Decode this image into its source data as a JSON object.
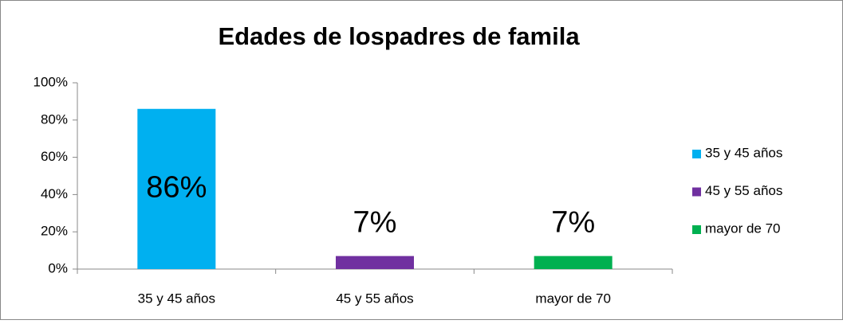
{
  "chart_data": {
    "type": "bar",
    "title": "Edades de lospadres de famila",
    "categories": [
      "35 y 45 años",
      "45 y 55 años",
      "mayor de 70"
    ],
    "values": [
      86,
      7,
      7
    ],
    "value_labels": [
      "86%",
      "7%",
      "7%"
    ],
    "colors": [
      "#00b0f0",
      "#7030a0",
      "#00b050"
    ],
    "ylim": [
      0,
      100
    ],
    "yticks": [
      {
        "value": 0,
        "label": "0%"
      },
      {
        "value": 20,
        "label": "20%"
      },
      {
        "value": 40,
        "label": "40%"
      },
      {
        "value": 60,
        "label": "60%"
      },
      {
        "value": 80,
        "label": "80%"
      },
      {
        "value": 100,
        "label": "100%"
      }
    ],
    "legend": "right"
  }
}
